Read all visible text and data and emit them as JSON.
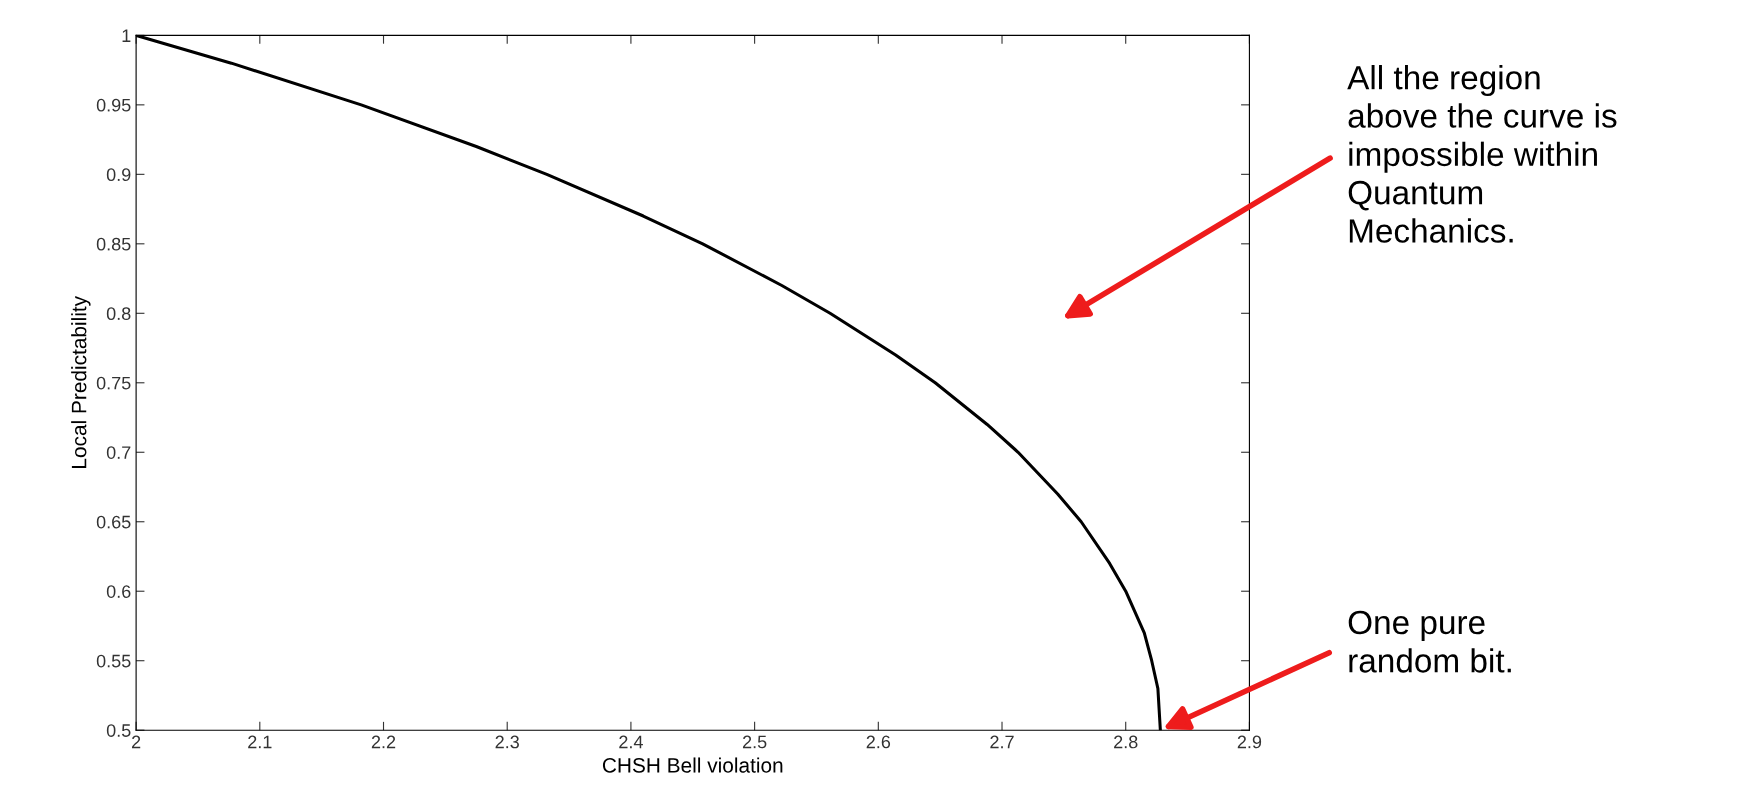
{
  "chart_data": {
    "type": "line",
    "xlabel": "CHSH Bell violation",
    "ylabel": "Local Predictability",
    "x": [
      2.0,
      2.077,
      2.182,
      2.275,
      2.332,
      2.41,
      2.458,
      2.522,
      2.561,
      2.614,
      2.646,
      2.688,
      2.713,
      2.745,
      2.764,
      2.787,
      2.8,
      2.815,
      2.821,
      2.826,
      2.828
    ],
    "series": [
      {
        "color": "#000000",
        "values": [
          1.0,
          0.98,
          0.95,
          0.92,
          0.9,
          0.87,
          0.85,
          0.82,
          0.8,
          0.77,
          0.75,
          0.72,
          0.7,
          0.67,
          0.65,
          0.62,
          0.6,
          0.57,
          0.55,
          0.53,
          0.5
        ]
      }
    ],
    "xlim": [
      2,
      2.9
    ],
    "xticks": [
      2,
      2.1,
      2.2,
      2.3,
      2.4,
      2.5,
      2.6,
      2.7,
      2.8,
      2.9
    ],
    "ylim": [
      0.5,
      1
    ],
    "yticks": [
      0.5,
      0.55,
      0.6,
      0.65,
      0.7,
      0.75,
      0.8,
      0.85,
      0.9,
      0.95,
      1
    ],
    "grid": false,
    "marker": "none",
    "line_style": "solid",
    "annotations": [
      "All the region\nabove the curve is\nimpossible within\nQuantum\nMechanics.",
      {
        "text": "One pure\nrandom bit.",
        "x": 2.828,
        "y": 0.5
      }
    ]
  }
}
